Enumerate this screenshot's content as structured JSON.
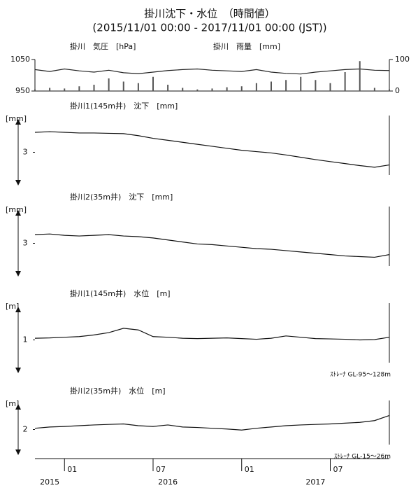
{
  "title": "掛川沈下・水位　（時間値）",
  "subtitle": "(2015/11/01 00:00 - 2017/11/01 00:00 (JST))",
  "x": [
    "2015-11",
    "2015-12",
    "2016-01",
    "2016-02",
    "2016-03",
    "2016-04",
    "2016-05",
    "2016-06",
    "2016-07",
    "2016-08",
    "2016-09",
    "2016-10",
    "2016-11",
    "2016-12",
    "2017-01",
    "2017-02",
    "2017-03",
    "2017-04",
    "2017-05",
    "2017-06",
    "2017-07",
    "2017-08",
    "2017-09",
    "2017-10",
    "2017-11"
  ],
  "xlim": [
    "2015-11",
    "2017-11"
  ],
  "xticks": [
    {
      "value": "2016-01",
      "label": "01"
    },
    {
      "value": "2016-07",
      "label": "07"
    },
    {
      "value": "2017-01",
      "label": "01"
    },
    {
      "value": "2017-07",
      "label": "07"
    }
  ],
  "year_ticks": [
    {
      "value": "2015-12",
      "label": "2015"
    },
    {
      "value": "2016-08",
      "label": "2016"
    },
    {
      "value": "2017-06",
      "label": "2017"
    }
  ],
  "chart_data": [
    {
      "type": "line",
      "ylim": [
        950,
        1050
      ],
      "yticks": [
        950,
        1050
      ],
      "y2lim": [
        0,
        100
      ],
      "y2ticks": [
        0,
        100
      ],
      "series": [
        {
          "name": "掛川　気圧　[hPa]",
          "color": "#222222",
          "values": [
            1018,
            1012,
            1020,
            1014,
            1010,
            1016,
            1008,
            1005,
            1010,
            1015,
            1018,
            1020,
            1016,
            1014,
            1012,
            1018,
            1010,
            1006,
            1004,
            1010,
            1014,
            1018,
            1020,
            1016,
            1015
          ]
        },
        {
          "name": "掛川　雨量　[mm]",
          "color": "#555555",
          "type": "bar",
          "axis": "y2",
          "values": [
            5,
            10,
            8,
            15,
            20,
            40,
            30,
            25,
            45,
            20,
            10,
            5,
            8,
            12,
            15,
            25,
            30,
            35,
            45,
            35,
            25,
            60,
            95,
            10,
            5
          ]
        }
      ]
    },
    {
      "type": "line",
      "title": "掛川1(145m井)　沈下　[mm]",
      "ylabel": "[mm]",
      "ylim": [
        2,
        4
      ],
      "yticks": [
        3
      ],
      "color": "#111111",
      "values": [
        3.6,
        3.62,
        3.6,
        3.58,
        3.58,
        3.57,
        3.56,
        3.5,
        3.42,
        3.36,
        3.3,
        3.24,
        3.18,
        3.12,
        3.06,
        3.02,
        2.98,
        2.92,
        2.85,
        2.78,
        2.72,
        2.66,
        2.6,
        2.55,
        2.62
      ]
    },
    {
      "type": "line",
      "title": "掛川2(35m井)　沈下　[mm]",
      "ylabel": "[mm]",
      "ylim": [
        2,
        4
      ],
      "yticks": [
        3
      ],
      "color": "#111111",
      "values": [
        3.26,
        3.28,
        3.24,
        3.22,
        3.24,
        3.26,
        3.22,
        3.2,
        3.16,
        3.1,
        3.04,
        2.98,
        2.96,
        2.92,
        2.88,
        2.84,
        2.82,
        2.78,
        2.74,
        2.7,
        2.66,
        2.62,
        2.6,
        2.58,
        2.66
      ]
    },
    {
      "type": "line",
      "title": "掛川1(145m井)　水位　[m]",
      "ylabel": "[m]",
      "ylim": [
        0,
        2
      ],
      "yticks": [
        1
      ],
      "color": "#111111",
      "note": "ｽﾄﾚｰﾅ GL-95〜128m",
      "values": [
        1.05,
        1.06,
        1.08,
        1.1,
        1.15,
        1.22,
        1.35,
        1.3,
        1.1,
        1.08,
        1.05,
        1.04,
        1.05,
        1.06,
        1.04,
        1.02,
        1.05,
        1.12,
        1.08,
        1.04,
        1.03,
        1.02,
        1.0,
        1.01,
        1.08
      ]
    },
    {
      "type": "line",
      "title": "掛川2(35m井)　水位　[m]",
      "ylabel": "[m]",
      "ylim": [
        1,
        3
      ],
      "yticks": [
        2
      ],
      "color": "#111111",
      "note": "ｽﾄﾚｰﾅ GL-15〜26m",
      "values": [
        2.05,
        2.1,
        2.12,
        2.15,
        2.18,
        2.2,
        2.22,
        2.15,
        2.12,
        2.18,
        2.1,
        2.08,
        2.05,
        2.02,
        1.98,
        2.05,
        2.1,
        2.15,
        2.18,
        2.2,
        2.22,
        2.25,
        2.28,
        2.35,
        2.55
      ]
    }
  ]
}
